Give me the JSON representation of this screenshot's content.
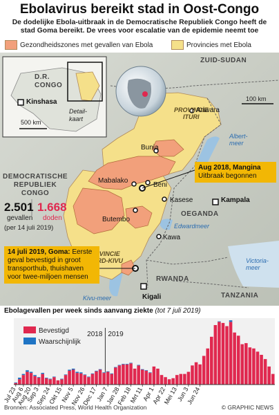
{
  "header": {
    "title": "Ebolavirus bereikt stad in Oost-Congo",
    "subtitle": "De dodelijke Ebola-uitbraak in de Democratische Republiek Congo heeft de stad Goma bereikt. De vrees voor escalatie van de epidemie neemt toe"
  },
  "legend": {
    "affected_label": "Gezondheidszones met gevallen van Ebola",
    "provinces_label": "Provincies met Ebola",
    "affected_color": "#f2a07b",
    "provinces_color": "#f5e08a"
  },
  "map": {
    "inset_country": "D.R.\nCONGO",
    "inset_city": "Kinshasa",
    "inset_detail": "Detail-\nkaart",
    "inset_scale": "500 km",
    "scale_main": "100 km",
    "countries": {
      "south_sudan": "ZUID-SUDAN",
      "drc": "DEMOCRATISCHE\nREPUBLIEK\nCONGO",
      "uganda": "OEGANDA",
      "rwanda": "RWANDA",
      "tanzania": "TANZANIA"
    },
    "provinces": {
      "ituri": "PROVINCIE\nITURI",
      "north_kivu": "PROVINCIE\nNOORD-KIVU"
    },
    "waters": {
      "albert": "Albert-\nmeer",
      "edward": "Edwardmeer",
      "victoria": "Victoria-\nmeer",
      "kivu": "Kivu-meer"
    },
    "cities": {
      "ariwara": "Ariwara",
      "bunia": "Bunia",
      "mabalako": "Mabalako",
      "beni": "Beni",
      "kasese": "Kasese",
      "kampala": "Kampala",
      "butembo": "Butembo",
      "kawa": "Kawa",
      "goma": "Goma",
      "kigali": "Kigali"
    },
    "callout_2018_title": "Aug 2018, Mangina",
    "callout_2018_text": "Uitbraak begonnen",
    "callout_2019_title": "14 juli 2019, Goma:",
    "callout_2019_text": "Eerste geval bevestigd in groot transporthub, thuishaven voor twee-miljoen mensen",
    "stats": {
      "cases": "2.501",
      "cases_label": "gevallen",
      "deaths": "1.668",
      "deaths_label": "doden",
      "date_note": "(per 14 juli 2019)"
    }
  },
  "chart_data": {
    "type": "bar",
    "title": "Ebolagevallen per week sinds aanvang ziekte",
    "subtitle": "(tot 7 juli 2019)",
    "series": [
      {
        "name": "Bevestigd",
        "color": "#e0284f",
        "values": [
          3,
          10,
          18,
          24,
          22,
          16,
          13,
          20,
          12,
          10,
          14,
          8,
          10,
          18,
          26,
          28,
          22,
          21,
          18,
          14,
          20,
          25,
          28,
          22,
          24,
          20,
          32,
          36,
          38,
          38,
          40,
          30,
          36,
          28,
          26,
          22,
          34,
          30,
          18,
          14,
          10,
          12,
          18,
          20,
          20,
          24,
          36,
          42,
          38,
          54,
          68,
          90,
          112,
          118,
          116,
          110,
          118,
          98,
          92,
          76,
          78,
          70,
          68,
          62,
          56,
          48,
          34,
          20
        ]
      },
      {
        "name": "Waarschijnlijk",
        "color": "#1f74c4",
        "values": [
          1,
          3,
          2,
          3,
          2,
          2,
          1,
          2,
          1,
          1,
          1,
          0,
          1,
          1,
          2,
          2,
          2,
          2,
          1,
          1,
          1,
          1,
          1,
          1,
          1,
          1,
          1,
          1,
          1,
          1,
          1,
          0,
          1,
          1,
          1,
          1,
          0,
          0,
          0,
          0,
          0,
          0,
          0,
          0,
          0,
          0,
          0,
          0,
          0,
          0,
          0,
          0,
          0,
          1,
          0,
          0,
          3,
          0,
          0,
          0,
          0,
          0,
          0,
          0,
          0,
          0,
          0,
          0
        ]
      }
    ],
    "year_labels": [
      "2018",
      "2019"
    ],
    "ylim": [
      0,
      125
    ],
    "tick_labels": [
      "Jul 23",
      "Aug 6",
      "Aug 20",
      "Sep 3",
      "Sep 24",
      "Okt 15",
      "Nov 5",
      "Nov 26",
      "Dec 17",
      "Jan 7",
      "Jan 28",
      "Feb 18",
      "Mrt 11",
      "Apr 1",
      "Apr 22",
      "Mei 13",
      "Jun 3",
      "Jun 24"
    ],
    "tick_positions": [
      0,
      2,
      4,
      6,
      9,
      12,
      15,
      18,
      21,
      24,
      27,
      30,
      33,
      36,
      39,
      42,
      45,
      48
    ]
  },
  "footer": {
    "source": "Bronnen: Associated Press, World Health Organization",
    "credit": "© GRAPHIC NEWS"
  }
}
